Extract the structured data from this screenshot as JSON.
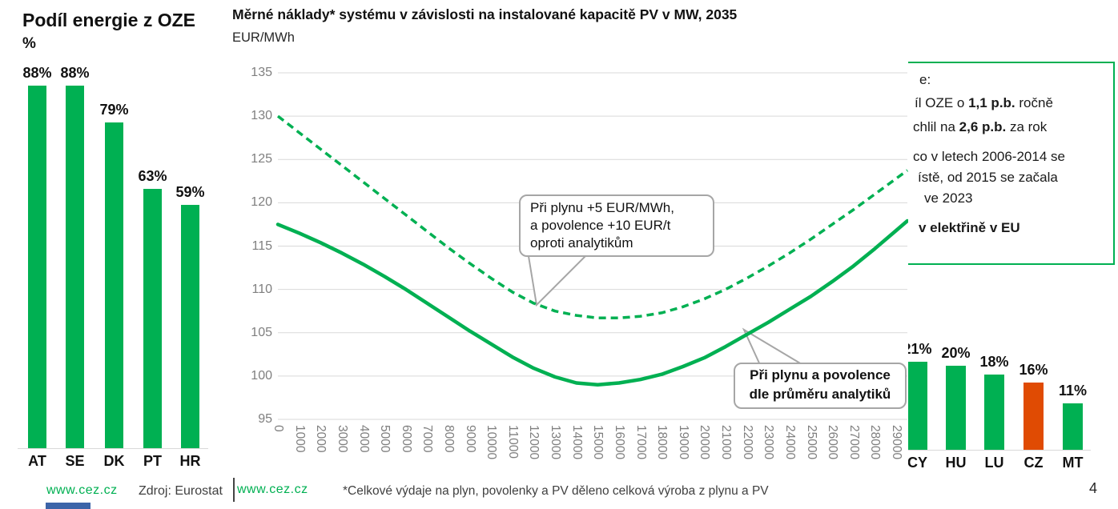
{
  "colors": {
    "green": "#00B052",
    "orange": "#E04B03",
    "axis_gray": "#7f7f7f",
    "gridline": "#d9d9d9",
    "bubble_border": "#a6a6a6",
    "blue_bar": "#3C64A8"
  },
  "left_chart": {
    "title": "Podíl energie z OZE",
    "unit": "%",
    "footer_link": "www.cez.cz",
    "source": "Zdroj: Eurostat"
  },
  "main_chart": {
    "title": "Měrné náklady* systému v závislosti na instalované kapacitě PV v MW, 2035",
    "unit": "EUR/MWh",
    "callout_dashed_lines": [
      "Při plynu +5 EUR/MWh,",
      "a povolence +10 EUR/t",
      "oproti analytikům"
    ],
    "callout_solid_lines": [
      "Při plynu a povolence",
      "dle průměru analytiků"
    ],
    "footer_link": "www.cez.cz",
    "footnote": "*Celkové výdaje na plyn, povolenky a PV děleno celková výroba z plynu a PV"
  },
  "right_box": {
    "lines": [
      {
        "segments": [
          {
            "t": "e:",
            "b": false
          }
        ]
      },
      {
        "segments": [
          {
            "t": "íl OZE o ",
            "b": false
          },
          {
            "t": "1,1 p.b.",
            "b": true
          },
          {
            "t": " ročně",
            "b": false
          }
        ]
      },
      {
        "segments": [
          {
            "t": "chlil na ",
            "b": false
          },
          {
            "t": "2,6 p.b.",
            "b": true
          },
          {
            "t": " za rok",
            "b": false
          }
        ]
      },
      {
        "segments": [
          {
            "t": "co v letech 2006-2014 se",
            "b": false
          }
        ]
      },
      {
        "segments": [
          {
            "t": "ístě, od 2015 se začala",
            "b": false
          }
        ]
      },
      {
        "segments": [
          {
            "t": "ve 2023",
            "b": false
          }
        ]
      },
      {
        "segments": [
          {
            "t": "v elektřině v EU",
            "b": true
          }
        ]
      }
    ]
  },
  "page_number": "4",
  "chart_data": [
    {
      "type": "bar",
      "title": "Podíl energie z OZE",
      "ylabel": "%",
      "categories": [
        "AT",
        "SE",
        "DK",
        "PT",
        "HR"
      ],
      "values": [
        88,
        88,
        79,
        63,
        59
      ],
      "bar_color": "#00B052"
    },
    {
      "type": "line",
      "title": "Měrné náklady* systému v závislosti na instalované kapacitě PV v MW, 2035",
      "ylabel": "EUR/MWh",
      "xlabel": "",
      "ylim": [
        95,
        135
      ],
      "yticks": [
        95,
        100,
        105,
        110,
        115,
        120,
        125,
        130,
        135
      ],
      "grid": true,
      "legend": "callouts",
      "x": [
        0,
        1000,
        2000,
        3000,
        4000,
        5000,
        6000,
        7000,
        8000,
        9000,
        10000,
        11000,
        12000,
        13000,
        14000,
        15000,
        16000,
        17000,
        18000,
        19000,
        20000,
        21000,
        22000,
        23000,
        24000,
        25000,
        26000,
        27000,
        28000,
        29000
      ],
      "series": [
        {
          "name": "Při plynu a povolence dle průměru analytiků",
          "style": "solid",
          "color": "#00B052",
          "values": [
            117.5,
            116.5,
            115.4,
            114.2,
            112.9,
            111.5,
            110.0,
            108.4,
            106.8,
            105.2,
            103.7,
            102.2,
            100.9,
            99.9,
            99.2,
            99.0,
            99.2,
            99.6,
            100.2,
            101.1,
            102.1,
            103.4,
            104.8,
            106.2,
            107.7,
            109.2,
            110.9,
            112.7,
            114.7,
            116.8
          ]
        },
        {
          "name": "Při plynu +5 EUR/MWh, a povolence +10 EUR/t oproti analytikům",
          "style": "dashed",
          "color": "#00B052",
          "values": [
            130.0,
            128.1,
            126.2,
            124.3,
            122.4,
            120.5,
            118.6,
            116.7,
            114.8,
            113.0,
            111.3,
            109.7,
            108.4,
            107.5,
            107.0,
            106.7,
            106.7,
            106.9,
            107.3,
            108.0,
            108.9,
            110.0,
            111.3,
            112.7,
            114.2,
            115.8,
            117.5,
            119.2,
            121.0,
            122.8
          ]
        }
      ]
    },
    {
      "type": "bar",
      "categories": [
        "CY",
        "HU",
        "LU",
        "CZ",
        "MT"
      ],
      "values": [
        21,
        20,
        18,
        16,
        11
      ],
      "bar_color": "#00B052",
      "highlight_category": "CZ",
      "highlight_color": "#E04B03"
    }
  ]
}
